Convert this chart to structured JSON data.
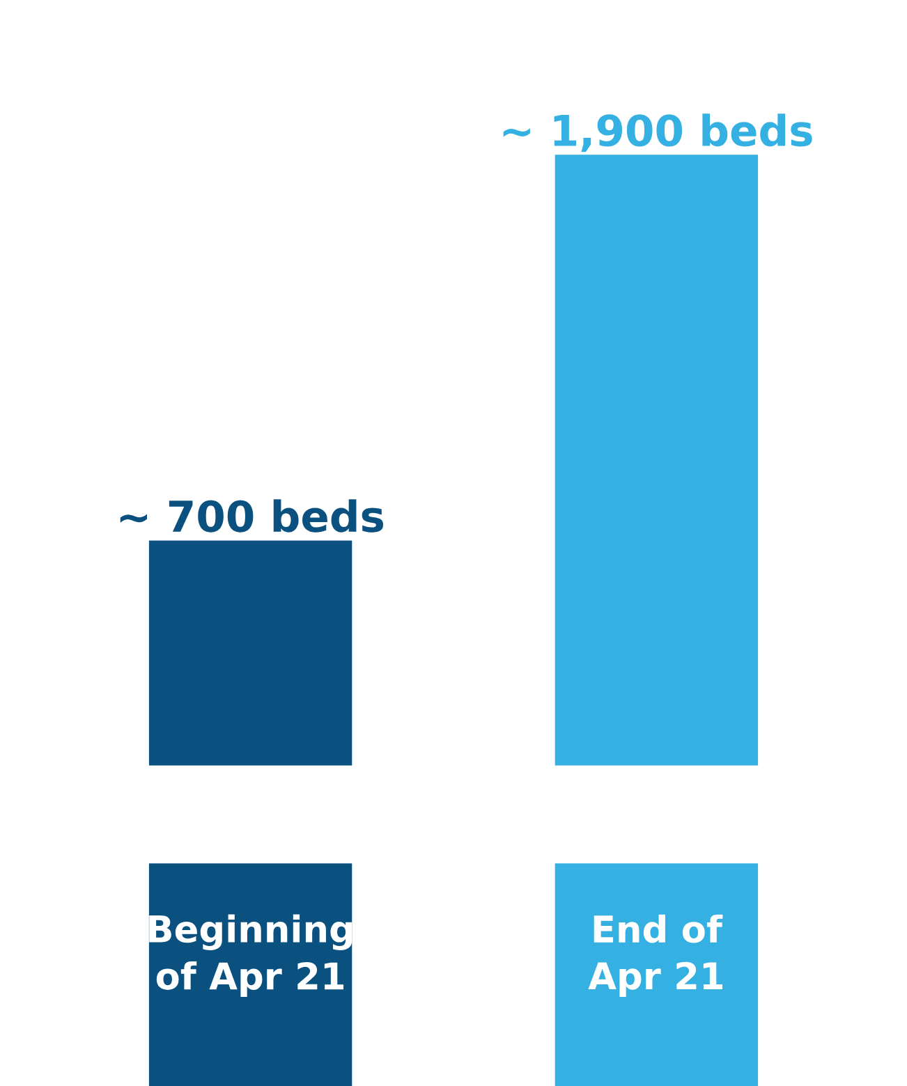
{
  "chart_data": {
    "type": "bar",
    "categories": [
      "Beginning\nof Apr 21",
      "End of\nApr 21"
    ],
    "values": [
      700,
      1900
    ],
    "colors": [
      "#0b5180",
      "#35b0e2"
    ],
    "value_labels": [
      "~ 700 beds",
      "~ 1,900 beds"
    ]
  }
}
